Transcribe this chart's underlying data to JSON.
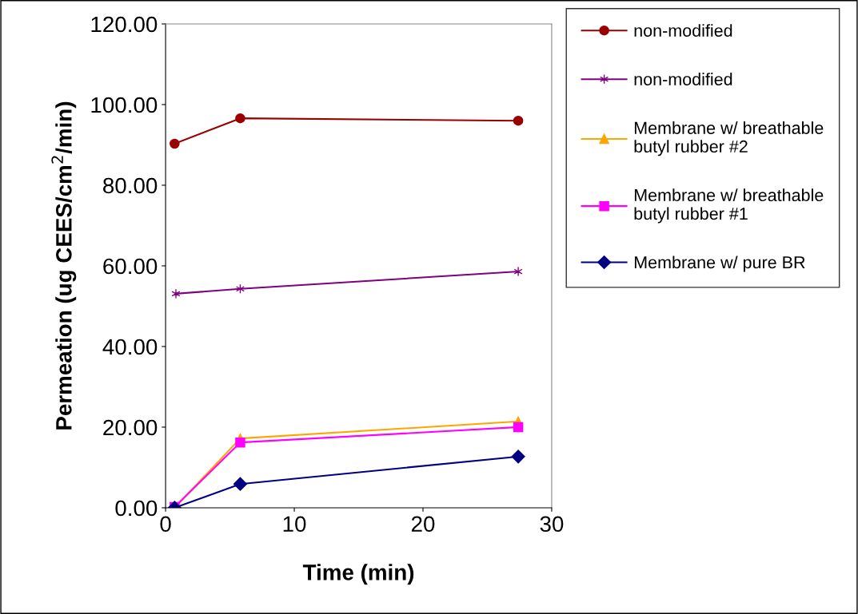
{
  "chart_data": {
    "type": "line",
    "xlabel": "Time (min)",
    "ylabel": "Permeation (ug CEES/cm$^{2}$/min)",
    "xlim": [
      0,
      30
    ],
    "xticks": [
      0,
      10,
      20,
      30
    ],
    "ylim": [
      0,
      120
    ],
    "yticks": [
      {
        "value": 0,
        "label": "0.00"
      },
      {
        "value": 20,
        "label": "20.00"
      },
      {
        "value": 40,
        "label": "40.00"
      },
      {
        "value": 60,
        "label": "60.00"
      },
      {
        "value": 80,
        "label": "80.00"
      },
      {
        "value": 100,
        "label": "100.00"
      },
      {
        "value": 120,
        "label": "120.00"
      }
    ],
    "grid": false,
    "legend": "right",
    "line_style": "solid",
    "series": [
      {
        "name": "non-modified",
        "color": "#990000",
        "marker": "circle",
        "x": [
          0.7,
          5.8,
          27.4
        ],
        "values": [
          90.3,
          96.6,
          96.0
        ]
      },
      {
        "name": "non-modified",
        "color": "#800080",
        "marker": "cross",
        "x": [
          0.8,
          5.8,
          27.4
        ],
        "values": [
          53.1,
          54.3,
          58.6
        ]
      },
      {
        "name": "Membrane w/ breathable\nbutyl rubber #2",
        "color": "#ffa500",
        "marker": "triangle",
        "x": [
          0.7,
          5.8,
          27.4
        ],
        "values": [
          0,
          17.2,
          21.4
        ]
      },
      {
        "name": "Membrane w/ breathable\nbutyl rubber #1",
        "color": "#ff00ff",
        "marker": "square",
        "x": [
          0.7,
          5.8,
          27.4
        ],
        "values": [
          0.2,
          16.2,
          20.0
        ]
      },
      {
        "name": "Membrane w/ pure BR",
        "color": "#000080",
        "marker": "diamond",
        "x": [
          0.7,
          5.8,
          27.4
        ],
        "values": [
          0,
          5.9,
          12.7
        ]
      }
    ]
  }
}
